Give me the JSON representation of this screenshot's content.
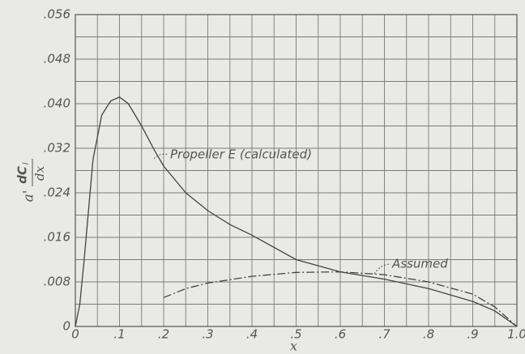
{
  "chart_data": {
    "type": "line",
    "xlabel": "x",
    "ylabel": {
      "prefix": "a'",
      "numerator": "dC",
      "subscript": "l",
      "denominator": "dx"
    },
    "xlim": [
      0,
      1.0
    ],
    "ylim": [
      0,
      0.056
    ],
    "xticks": [
      0,
      {
        "value": 0.1,
        "label": ".1"
      },
      {
        "value": 0.2,
        "label": ".2"
      },
      {
        "value": 0.3,
        "label": ".3"
      },
      {
        "value": 0.4,
        "label": ".4"
      },
      {
        "value": 0.5,
        "label": ".5"
      },
      {
        "value": 0.6,
        "label": ".6"
      },
      {
        "value": 0.7,
        "label": ".7"
      },
      {
        "value": 0.8,
        "label": ".8"
      },
      {
        "value": 0.9,
        "label": ".9"
      },
      {
        "value": 1.0,
        "label": "1.0"
      }
    ],
    "yticks": [
      0,
      {
        "value": 0.008,
        "label": ".008"
      },
      {
        "value": 0.016,
        "label": ".016"
      },
      {
        "value": 0.024,
        "label": ".024"
      },
      {
        "value": 0.032,
        "label": ".032"
      },
      {
        "value": 0.04,
        "label": ".040"
      },
      {
        "value": 0.048,
        "label": ".048"
      },
      {
        "value": 0.056,
        "label": ".056"
      }
    ],
    "grid": true,
    "series": [
      {
        "name": "Propeller E (calculated)",
        "color": "#444",
        "dash": "solid",
        "x": [
          0,
          0.01,
          0.02,
          0.04,
          0.06,
          0.08,
          0.1,
          0.12,
          0.15,
          0.18,
          0.2,
          0.25,
          0.3,
          0.35,
          0.4,
          0.5,
          0.6,
          0.7,
          0.8,
          0.9,
          0.95,
          1.0
        ],
        "values": [
          0,
          0.004,
          0.012,
          0.03,
          0.038,
          0.0405,
          0.0412,
          0.04,
          0.036,
          0.0315,
          0.0288,
          0.024,
          0.0208,
          0.0183,
          0.0164,
          0.012,
          0.0098,
          0.0085,
          0.0068,
          0.0045,
          0.0028,
          0
        ]
      },
      {
        "name": "Assumed",
        "color": "#444",
        "dash": "dashdot",
        "x": [
          0.2,
          0.25,
          0.3,
          0.4,
          0.5,
          0.6,
          0.7,
          0.8,
          0.9,
          0.95,
          1.0
        ],
        "values": [
          0.0052,
          0.0068,
          0.0078,
          0.009,
          0.0097,
          0.0098,
          0.0093,
          0.008,
          0.0058,
          0.0035,
          0
        ]
      }
    ]
  }
}
